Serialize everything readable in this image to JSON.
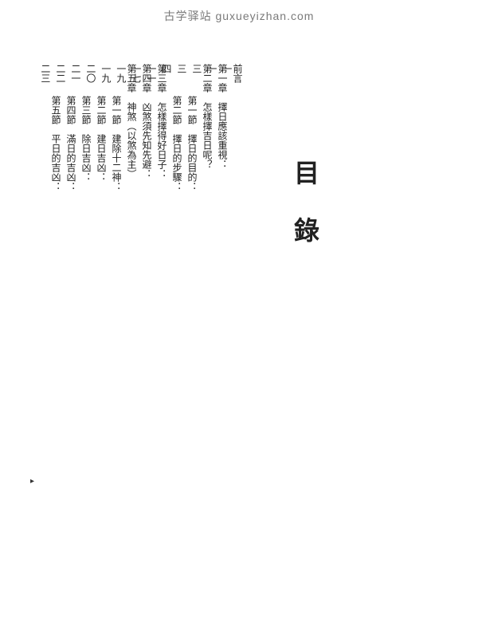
{
  "watermark": "古学驿站 guxueyizhan.com",
  "title": "目錄",
  "entries": [
    {
      "label": "前言",
      "page": "一",
      "indent": false
    },
    {
      "label": "第一章　擇日應該重視：",
      "page": "一",
      "indent": false
    },
    {
      "label": "第二章　怎樣擇吉日呢？",
      "page": "三",
      "indent": false
    },
    {
      "label": "第一節　擇日的目的：",
      "page": "三",
      "indent": true
    },
    {
      "label": "第二節　擇日的步驟：",
      "page": "四",
      "indent": true
    },
    {
      "label": "第三章　怎樣擇得好日子：",
      "page": "一一",
      "indent": false
    },
    {
      "label": "第四章　凶煞須先知先避：",
      "page": "一七",
      "indent": false
    },
    {
      "label": "第五章　神煞（以煞為主）",
      "page": "一九",
      "indent": false
    },
    {
      "label": "第一節　建除十二神：",
      "page": "一九",
      "indent": true
    },
    {
      "label": "第二節　建日吉凶：",
      "page": "二〇",
      "indent": true
    },
    {
      "label": "第三節　除日吉凶：",
      "page": "二一",
      "indent": true
    },
    {
      "label": "第四節　滿日的吉凶：",
      "page": "二二",
      "indent": true
    },
    {
      "label": "第五節　平日的吉凶：",
      "page": "二三",
      "indent": true
    }
  ],
  "dot_fill": "：：：：：：：：：：：：：：：：：：：：：：：：：：：：：：：：：：：：：：：：：：：：：：：：：：：：：：：：：：：：：：：：：：：："
}
